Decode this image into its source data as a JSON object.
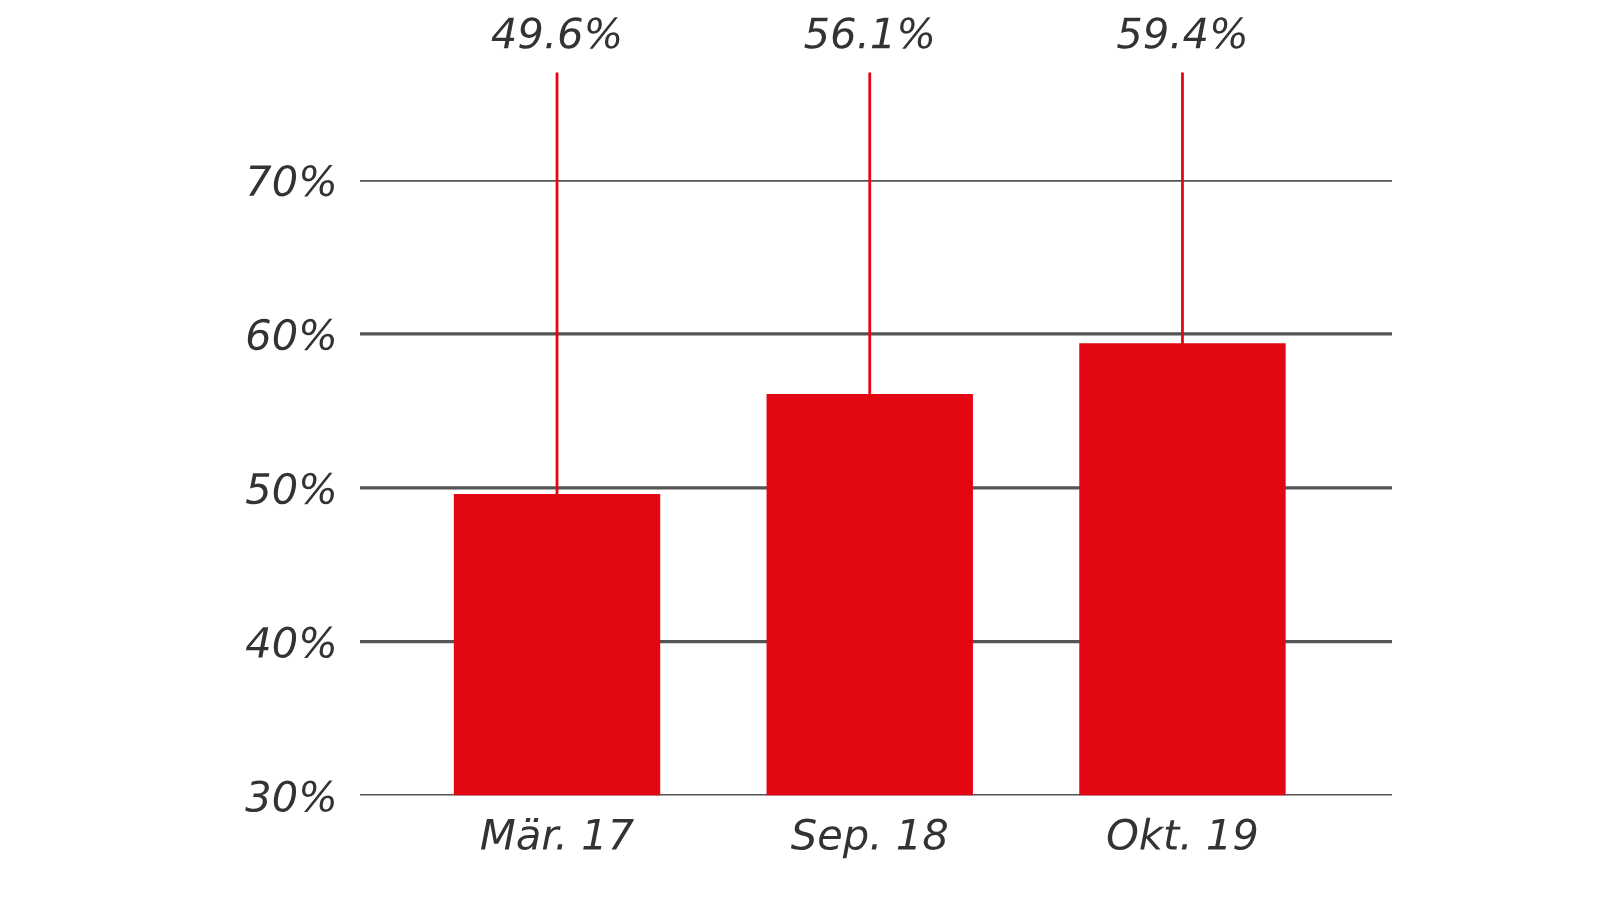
{
  "chart_data": {
    "type": "bar",
    "categories": [
      "Mär. 17",
      "Sep. 18",
      "Okt. 19"
    ],
    "values": [
      49.6,
      56.1,
      59.4
    ],
    "color": "#e30613",
    "value_labels": [
      "49.6%",
      "56.1%",
      "59.4%"
    ],
    "ylim": [
      30,
      70
    ],
    "yticks": [
      {
        "value": 30,
        "label": "30%"
      },
      {
        "value": 40,
        "label": "40%"
      },
      {
        "value": 50,
        "label": "50%"
      },
      {
        "value": 60,
        "label": "60%"
      },
      {
        "value": 70,
        "label": "70%"
      }
    ],
    "grid": "y"
  }
}
